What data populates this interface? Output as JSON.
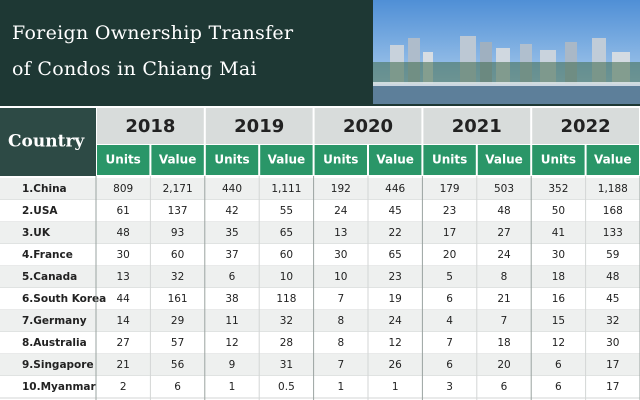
{
  "title": {
    "line1": "Foreign Ownership Transfer",
    "line2": "of Condos in Chiang Mai"
  },
  "table": {
    "country_header": "Country",
    "years": [
      "2018",
      "2019",
      "2020",
      "2021",
      "2022"
    ],
    "column_labels": [
      "Units",
      "Value"
    ],
    "rows": [
      [
        "1.China",
        "809",
        "2,171",
        "440",
        "1,111",
        "192",
        "446",
        "179",
        "503",
        "352",
        "1,188"
      ],
      [
        "2.USA",
        "61",
        "137",
        "42",
        "55",
        "24",
        "45",
        "23",
        "48",
        "50",
        "168"
      ],
      [
        "3.UK",
        "48",
        "93",
        "35",
        "65",
        "13",
        "22",
        "17",
        "27",
        "41",
        "133"
      ],
      [
        "4.France",
        "30",
        "60",
        "37",
        "60",
        "30",
        "65",
        "20",
        "24",
        "30",
        "59"
      ],
      [
        "5.Canada",
        "13",
        "32",
        "6",
        "10",
        "10",
        "23",
        "5",
        "8",
        "18",
        "48"
      ],
      [
        "6.South Korea",
        "44",
        "161",
        "38",
        "118",
        "7",
        "19",
        "6",
        "21",
        "16",
        "45"
      ],
      [
        "7.Germany",
        "14",
        "29",
        "11",
        "32",
        "8",
        "24",
        "4",
        "7",
        "15",
        "32"
      ],
      [
        "8.Australia",
        "27",
        "57",
        "12",
        "28",
        "8",
        "12",
        "7",
        "18",
        "12",
        "30"
      ],
      [
        "9.Singapore",
        "21",
        "56",
        "9",
        "31",
        "7",
        "26",
        "6",
        "20",
        "6",
        "17"
      ],
      [
        "10.Myanmar",
        "2",
        "6",
        "1",
        "0.5",
        "1",
        "1",
        "3",
        "6",
        "6",
        "17"
      ]
    ]
  }
}
